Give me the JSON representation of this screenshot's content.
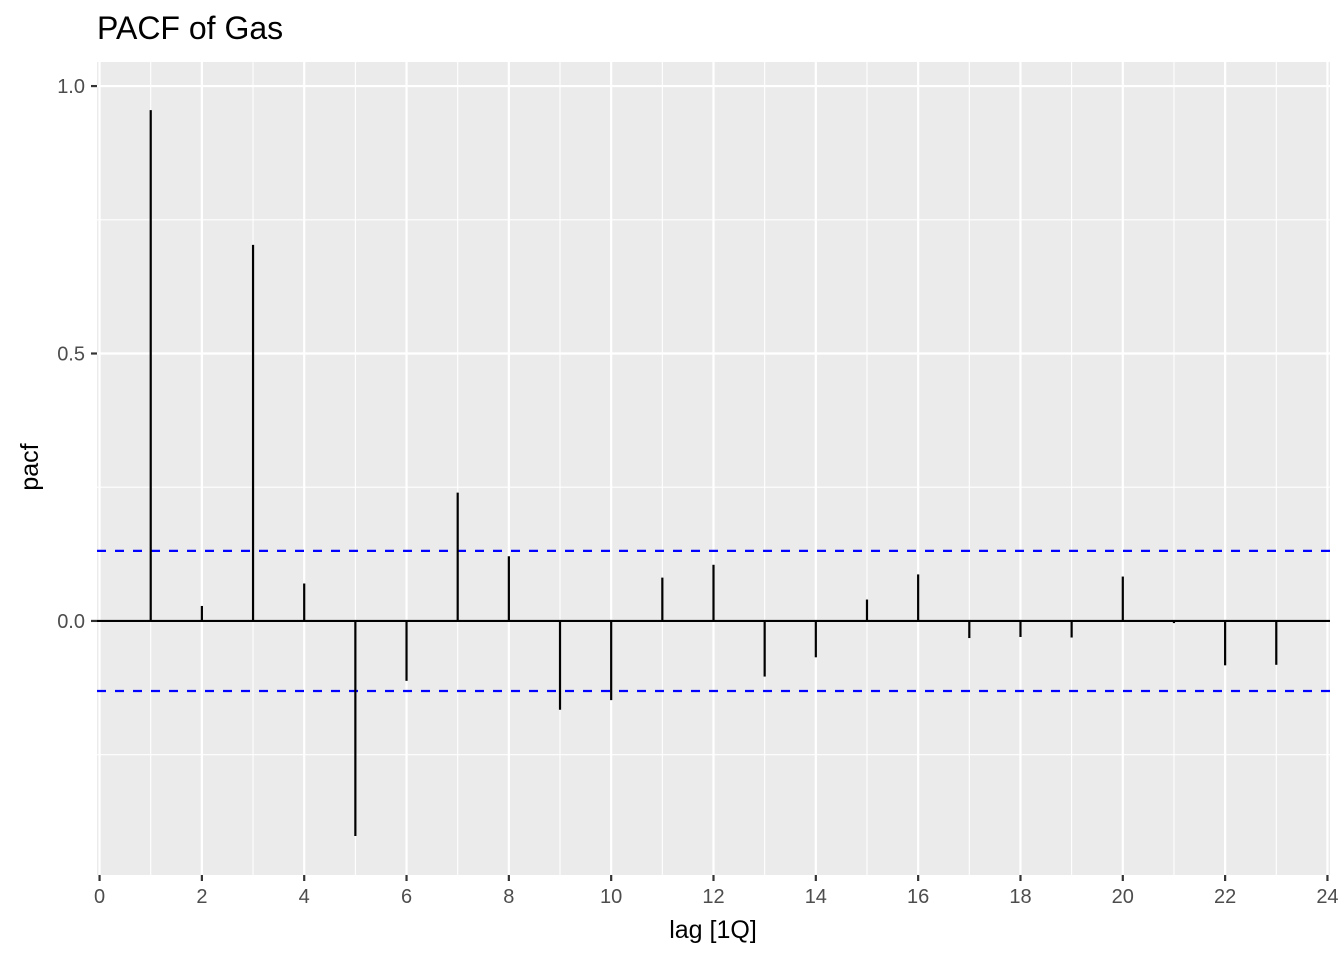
{
  "chart_data": {
    "type": "bar",
    "title": "PACF of Gas",
    "xlabel": "lag [1Q]",
    "ylabel": "pacf",
    "xlim": [
      -0.05,
      24.05
    ],
    "ylim": [
      -0.475,
      1.045
    ],
    "x_ticks": [
      0,
      2,
      4,
      6,
      8,
      10,
      12,
      14,
      16,
      18,
      20,
      22,
      24
    ],
    "y_ticks": [
      0.0,
      0.5,
      1.0
    ],
    "y_tick_labels": [
      "0.0",
      "0.5",
      "1.0"
    ],
    "grid": true,
    "lags": [
      1,
      2,
      3,
      4,
      5,
      6,
      7,
      8,
      9,
      10,
      11,
      12,
      13,
      14,
      15,
      16,
      17,
      18,
      19,
      20,
      21,
      22,
      23
    ],
    "values": [
      0.955,
      0.028,
      0.703,
      0.07,
      -0.402,
      -0.112,
      0.24,
      0.121,
      -0.166,
      -0.148,
      0.081,
      0.105,
      -0.104,
      -0.068,
      0.04,
      0.087,
      -0.032,
      -0.03,
      -0.031,
      0.083,
      -0.004,
      -0.083,
      -0.082
    ],
    "confidence_bound": 0.131,
    "colors": {
      "panel": "#ebebeb",
      "grid": "#ffffff",
      "bars": "#000000",
      "confidence": "#0000ff",
      "tick_labels": "#4d4d4d"
    }
  }
}
